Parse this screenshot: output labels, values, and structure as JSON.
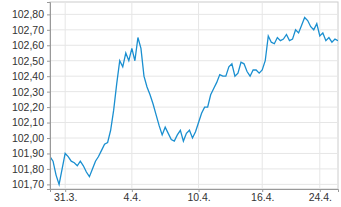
{
  "chart_data": {
    "type": "line",
    "categories": [
      null,
      null,
      null,
      null,
      null,
      "31.3.",
      null,
      null,
      null,
      null,
      null,
      null,
      null,
      null,
      null,
      null,
      null,
      null,
      null,
      null,
      null,
      null,
      null,
      null,
      null,
      null,
      null,
      "4.4.",
      null,
      null,
      null,
      null,
      null,
      null,
      null,
      null,
      null,
      null,
      null,
      null,
      null,
      null,
      null,
      null,
      null,
      null,
      null,
      null,
      null,
      "10.4.",
      null,
      null,
      null,
      null,
      null,
      null,
      null,
      null,
      null,
      null,
      null,
      null,
      null,
      null,
      null,
      null,
      null,
      null,
      null,
      null,
      "16.4.",
      null,
      null,
      null,
      null,
      null,
      null,
      null,
      null,
      null,
      null,
      null,
      null,
      null,
      null,
      null,
      null,
      null,
      null,
      "24.4.",
      null,
      null,
      null,
      null,
      null,
      null
    ],
    "values": [
      101.88,
      101.85,
      101.76,
      101.7,
      101.8,
      101.9,
      101.88,
      101.85,
      101.84,
      101.82,
      101.85,
      101.82,
      101.78,
      101.75,
      101.8,
      101.85,
      101.88,
      101.92,
      101.96,
      101.97,
      102.05,
      102.18,
      102.35,
      102.5,
      102.46,
      102.55,
      102.5,
      102.58,
      102.5,
      102.65,
      102.58,
      102.4,
      102.33,
      102.28,
      102.22,
      102.15,
      102.08,
      102.02,
      102.07,
      102.03,
      101.99,
      101.98,
      102.02,
      102.05,
      101.98,
      102.03,
      102.05,
      102.0,
      102.04,
      102.1,
      102.16,
      102.2,
      102.2,
      102.28,
      102.32,
      102.36,
      102.41,
      102.4,
      102.4,
      102.46,
      102.48,
      102.4,
      102.42,
      102.49,
      102.48,
      102.43,
      102.4,
      102.44,
      102.44,
      102.42,
      102.44,
      102.5,
      102.66,
      102.62,
      102.61,
      102.65,
      102.63,
      102.64,
      102.67,
      102.63,
      102.64,
      102.7,
      102.68,
      102.73,
      102.78,
      102.76,
      102.72,
      102.7,
      102.74,
      102.66,
      102.68,
      102.63,
      102.65,
      102.62,
      102.64,
      102.63
    ],
    "color": "#1a8fd0",
    "ylim": [
      101.67,
      102.88
    ],
    "yticks": [
      {
        "value": 101.7,
        "label": "101,70"
      },
      {
        "value": 101.8,
        "label": "101,80"
      },
      {
        "value": 101.9,
        "label": "101,90"
      },
      {
        "value": 102.0,
        "label": "102,00"
      },
      {
        "value": 102.1,
        "label": "102,10"
      },
      {
        "value": 102.2,
        "label": "102,20"
      },
      {
        "value": 102.3,
        "label": "102,30"
      },
      {
        "value": 102.4,
        "label": "102,40"
      },
      {
        "value": 102.5,
        "label": "102,50"
      },
      {
        "value": 102.6,
        "label": "102,60"
      },
      {
        "value": 102.7,
        "label": "102,70"
      },
      {
        "value": 102.8,
        "label": "102,80"
      }
    ],
    "grid": true
  }
}
